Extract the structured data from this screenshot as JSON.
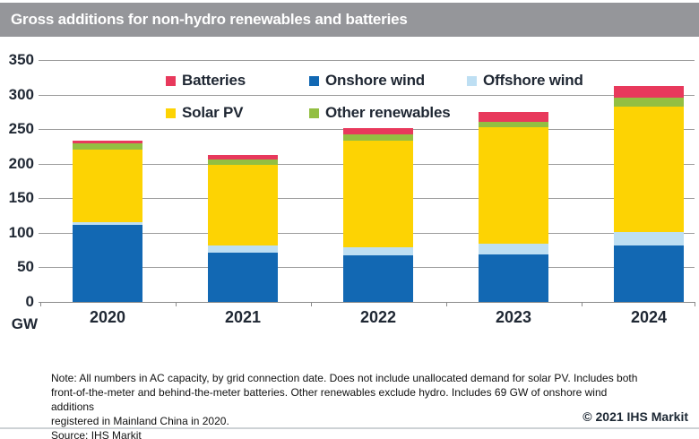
{
  "title": "Gross additions for non-hydro renewables and batteries",
  "colors": {
    "titlebar_bg": "#95969a",
    "title_text": "#ffffff",
    "grid": "#9c9c9c",
    "baseline": "#8a8a8a",
    "axis_text": "#1f2733",
    "note_text": "#111111",
    "copyright_text": "#1c2733",
    "bottom_rule": "#cdd2d5",
    "batteries": "#e8395c",
    "onshore_wind": "#1268b3",
    "offshore_wind": "#bedff3",
    "solar_pv": "#fdd303",
    "other_renewables": "#93bf42"
  },
  "legend": {
    "rows": [
      {
        "y": 80,
        "items": [
          {
            "x": 185,
            "label": "Batteries",
            "key": "batteries"
          },
          {
            "x": 345,
            "label": "Onshore wind",
            "key": "onshore_wind"
          },
          {
            "x": 521,
            "label": "Offshore wind",
            "key": "offshore_wind"
          }
        ]
      },
      {
        "y": 116,
        "items": [
          {
            "x": 185,
            "label": "Solar PV",
            "key": "solar_pv"
          },
          {
            "x": 345,
            "label": "Other renewables",
            "key": "other_renewables"
          }
        ]
      }
    ]
  },
  "chart_data": {
    "type": "bar",
    "stacked": true,
    "title": "Gross additions for non-hydro renewables and batteries",
    "unit": "GW",
    "ylabel": "GW",
    "xlabel": "",
    "ylim": [
      0,
      350
    ],
    "yticks": [
      0,
      50,
      100,
      150,
      200,
      250,
      300,
      350
    ],
    "grid": "horizontal",
    "legend_position": "top-inside",
    "categories": [
      "2020",
      "2021",
      "2022",
      "2023",
      "2024"
    ],
    "series": [
      {
        "name": "Onshore wind",
        "key": "onshore_wind",
        "values": [
          112,
          71,
          67,
          69,
          82
        ]
      },
      {
        "name": "Offshore wind",
        "key": "offshore_wind",
        "values": [
          4,
          11,
          12,
          15,
          19
        ]
      },
      {
        "name": "Solar PV",
        "key": "solar_pv",
        "values": [
          104,
          116,
          154,
          169,
          181
        ]
      },
      {
        "name": "Other renewables",
        "key": "other_renewables",
        "values": [
          9,
          8,
          10,
          8,
          14
        ]
      },
      {
        "name": "Batteries",
        "key": "batteries",
        "values": [
          4,
          6,
          8,
          14,
          16
        ]
      }
    ],
    "totals": [
      233,
      212,
      251,
      275,
      312
    ],
    "stack_order_bottom_to_top": [
      "Onshore wind",
      "Offshore wind",
      "Solar PV",
      "Other renewables",
      "Batteries"
    ]
  },
  "footer": {
    "note_lines": [
      "Note: All numbers in AC capacity, by grid connection date. Does not include unallocated demand for solar PV. Includes both",
      "front-of-the-meter and behind-the-meter batteries. Other renewables exclude hydro. Includes 69 GW of onshore wind additions",
      "registered in Mainland China in 2020."
    ],
    "source": "Source: IHS Markit",
    "copyright": "© 2021 IHS Markit"
  }
}
